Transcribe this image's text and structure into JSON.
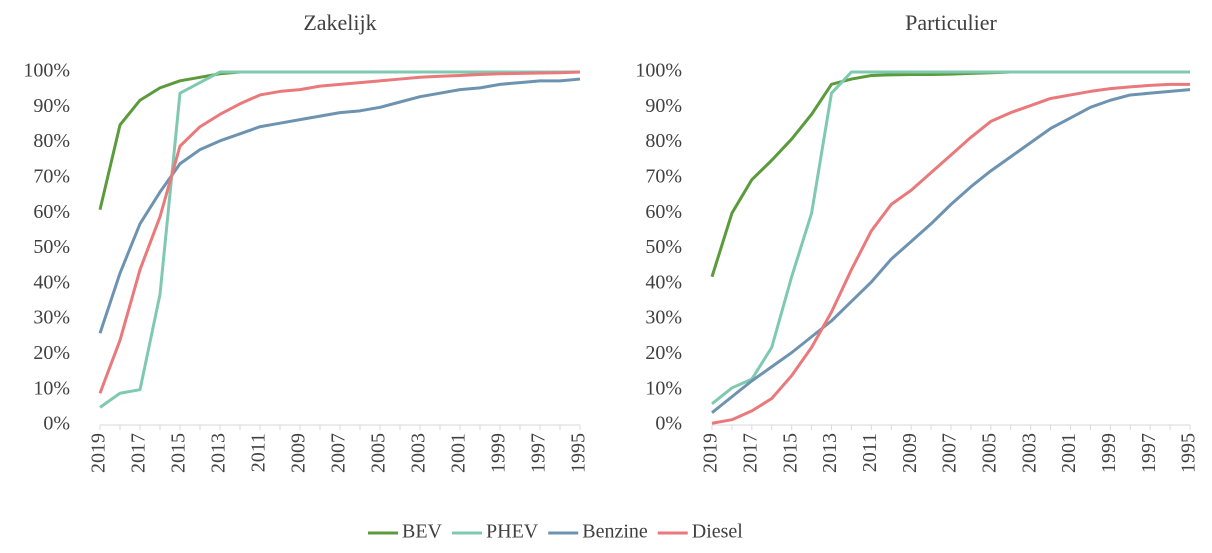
{
  "chart_data": [
    {
      "type": "line",
      "title": "Zakelijk",
      "categories": [
        "2019",
        null,
        "2017",
        null,
        "2015",
        null,
        "2013",
        null,
        "2011",
        null,
        "2009",
        null,
        "2007",
        null,
        "2005",
        null,
        "2003",
        null,
        "2001",
        null,
        "1999",
        null,
        "1997",
        null,
        "1995"
      ],
      "ylim": [
        0,
        100
      ],
      "yticks": [
        {
          "value": 0,
          "label": "0%"
        },
        {
          "value": 10,
          "label": "10%"
        },
        {
          "value": 20,
          "label": "20%"
        },
        {
          "value": 30,
          "label": "30%"
        },
        {
          "value": 40,
          "label": "40%"
        },
        {
          "value": 50,
          "label": "50%"
        },
        {
          "value": 60,
          "label": "60%"
        },
        {
          "value": 70,
          "label": "70%"
        },
        {
          "value": 80,
          "label": "80%"
        },
        {
          "value": 90,
          "label": "90%"
        },
        {
          "value": 100,
          "label": "100%"
        }
      ],
      "series": [
        {
          "name": "BEV",
          "color": "#5b9b3b",
          "values": [
            61,
            85,
            92,
            95.5,
            97.5,
            98.5,
            99.5,
            100,
            100,
            100,
            100,
            100,
            100,
            100,
            100,
            100,
            100,
            100,
            100,
            100,
            100,
            100,
            100,
            100,
            100
          ]
        },
        {
          "name": "PHEV",
          "color": "#80c9b1",
          "values": [
            5,
            9,
            10,
            37,
            94,
            97,
            100,
            100,
            100,
            100,
            100,
            100,
            100,
            100,
            100,
            100,
            100,
            100,
            100,
            100,
            100,
            100,
            100,
            100,
            100
          ]
        },
        {
          "name": "Benzine",
          "color": "#6e93b1",
          "values": [
            26,
            43,
            57,
            66,
            74,
            78,
            80.5,
            82.5,
            84.5,
            85.5,
            86.5,
            87.5,
            88.5,
            89,
            90,
            91.5,
            93,
            94,
            95,
            95.5,
            96.5,
            97,
            97.5,
            97.5,
            98
          ]
        },
        {
          "name": "Diesel",
          "color": "#e9797b",
          "values": [
            9,
            24,
            44,
            59,
            79,
            84.5,
            88,
            91,
            93.5,
            94.5,
            95,
            96,
            96.5,
            97,
            97.5,
            98,
            98.5,
            98.8,
            99,
            99.3,
            99.5,
            99.6,
            99.7,
            99.8,
            100
          ]
        }
      ]
    },
    {
      "type": "line",
      "title": "Particulier",
      "categories": [
        "2019",
        null,
        "2017",
        null,
        "2015",
        null,
        "2013",
        null,
        "2011",
        null,
        "2009",
        null,
        "2007",
        null,
        "2005",
        null,
        "2003",
        null,
        "2001",
        null,
        "1999",
        null,
        "1997",
        null,
        "1995"
      ],
      "ylim": [
        0,
        100
      ],
      "yticks": [
        {
          "value": 0,
          "label": "0%"
        },
        {
          "value": 10,
          "label": "10%"
        },
        {
          "value": 20,
          "label": "20%"
        },
        {
          "value": 30,
          "label": "30%"
        },
        {
          "value": 40,
          "label": "40%"
        },
        {
          "value": 50,
          "label": "50%"
        },
        {
          "value": 60,
          "label": "60%"
        },
        {
          "value": 70,
          "label": "70%"
        },
        {
          "value": 80,
          "label": "80%"
        },
        {
          "value": 90,
          "label": "90%"
        },
        {
          "value": 100,
          "label": "100%"
        }
      ],
      "series": [
        {
          "name": "BEV",
          "color": "#5b9b3b",
          "values": [
            42,
            60,
            69.5,
            75,
            81,
            88,
            96.5,
            98,
            99,
            99.2,
            99.3,
            99.3,
            99.4,
            99.6,
            99.8,
            100,
            100,
            100,
            100,
            100,
            100,
            100,
            100,
            100,
            100
          ]
        },
        {
          "name": "PHEV",
          "color": "#80c9b1",
          "values": [
            6,
            10.5,
            13,
            22,
            42,
            60,
            94,
            100,
            100,
            100,
            100,
            100,
            100,
            100,
            100,
            100,
            100,
            100,
            100,
            100,
            100,
            100,
            100,
            100,
            100
          ]
        },
        {
          "name": "Benzine",
          "color": "#6e93b1",
          "values": [
            3.5,
            8,
            12.5,
            16.5,
            20.5,
            25,
            29.5,
            35,
            40.5,
            47,
            52,
            57,
            62.5,
            67.5,
            72,
            76,
            80,
            84,
            87,
            90,
            92,
            93.5,
            94,
            94.5,
            95
          ]
        },
        {
          "name": "Diesel",
          "color": "#e9797b",
          "values": [
            0.5,
            1.5,
            4,
            7.5,
            14,
            22,
            32,
            44,
            55,
            62.5,
            66.5,
            71.5,
            76.5,
            81.5,
            86,
            88.5,
            90.5,
            92.5,
            93.5,
            94.5,
            95.3,
            95.8,
            96.2,
            96.5,
            96.5
          ]
        }
      ]
    }
  ]
}
